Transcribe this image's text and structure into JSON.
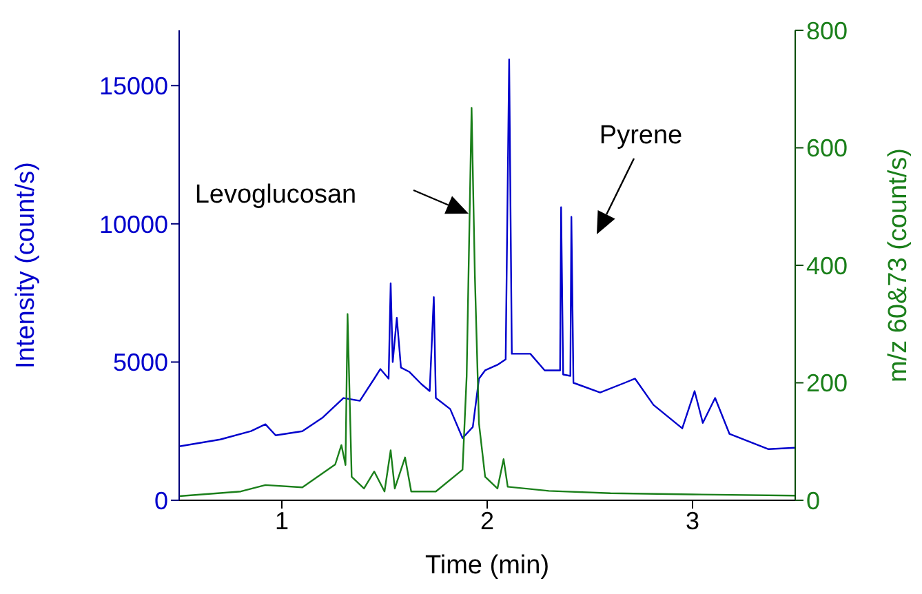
{
  "chart_data": {
    "type": "line",
    "xlabel": "Time (min)",
    "ylabel": "Intensity (count/s)",
    "y2label": "m/z 60&73 (count/s)",
    "xlim": [
      0.5,
      3.5
    ],
    "xticks": [
      1,
      2,
      3
    ],
    "ylim": [
      0,
      17000
    ],
    "yticks": [
      0,
      5000,
      10000,
      15000
    ],
    "y2lim": [
      0,
      800
    ],
    "y2ticks": [
      0,
      200,
      400,
      600,
      800
    ],
    "marker": "none",
    "line_style": "solid",
    "series": [
      {
        "color": "#0000cc",
        "x": [
          0.5,
          0.7,
          0.85,
          0.92,
          0.97,
          1.1,
          1.2,
          1.3,
          1.38,
          1.45,
          1.48,
          1.52,
          1.53,
          1.54,
          1.56,
          1.58,
          1.62,
          1.68,
          1.72,
          1.74,
          1.75,
          1.82,
          1.88,
          1.93,
          1.96,
          1.99,
          2.05,
          2.09,
          2.107,
          2.12,
          2.21,
          2.28,
          2.355,
          2.36,
          2.37,
          2.405,
          2.41,
          2.42,
          2.55,
          2.67,
          2.72,
          2.81,
          2.95,
          3.01,
          3.05,
          3.11,
          3.18,
          3.37,
          3.5
        ],
        "values": [
          1950,
          2200,
          2500,
          2750,
          2350,
          2500,
          3000,
          3700,
          3600,
          4400,
          4750,
          4400,
          7850,
          5000,
          6600,
          4800,
          4650,
          4200,
          3950,
          7350,
          3700,
          3300,
          2250,
          2650,
          4400,
          4700,
          4900,
          5100,
          15950,
          5300,
          5300,
          4700,
          4700,
          10600,
          4550,
          4500,
          10250,
          4250,
          3900,
          4250,
          4400,
          3450,
          2600,
          3950,
          2800,
          3700,
          2400,
          1850,
          1900
        ]
      },
      {
        "color": "#1a7f1a",
        "axis": "y2",
        "x": [
          0.5,
          0.8,
          0.92,
          1.1,
          1.26,
          1.29,
          1.31,
          1.32,
          1.34,
          1.4,
          1.45,
          1.5,
          1.53,
          1.55,
          1.6,
          1.63,
          1.75,
          1.88,
          1.9,
          1.924,
          1.94,
          1.96,
          1.99,
          2.05,
          2.08,
          2.1,
          2.3,
          2.6,
          3.0,
          3.5
        ],
        "values": [
          7,
          15,
          26,
          22,
          61,
          94,
          60,
          317,
          40,
          20,
          49,
          15,
          85,
          20,
          73,
          15,
          15,
          52,
          211,
          668,
          383,
          131,
          40,
          20,
          70,
          23,
          16,
          12,
          10,
          8
        ]
      }
    ],
    "annotations": [
      "Levoglucosan",
      "Pyrene"
    ]
  }
}
